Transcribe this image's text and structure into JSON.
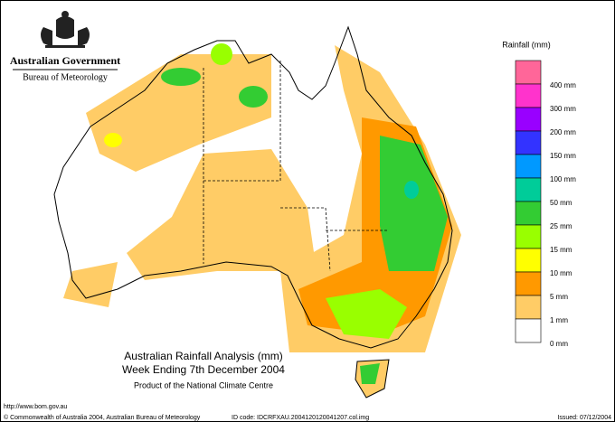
{
  "header": {
    "government": "Australian Government",
    "bureau": "Bureau of Meteorology"
  },
  "legend": {
    "title": "Rainfall (mm)",
    "colors": [
      "#ff6699",
      "#ff33cc",
      "#9900ff",
      "#3333ff",
      "#0099ff",
      "#00cc99",
      "#33cc33",
      "#99ff00",
      "#ffff00",
      "#ff9900",
      "#ffcc66",
      "#ffffff"
    ],
    "labels": [
      "400 mm",
      "300 mm",
      "200 mm",
      "150 mm",
      "100 mm",
      "50 mm",
      "25 mm",
      "15 mm",
      "10 mm",
      "5 mm",
      "1 mm",
      "0 mm"
    ]
  },
  "caption": {
    "title": "Australian Rainfall Analysis (mm)",
    "subtitle": "Week Ending 7th December 2004",
    "product": "Product of the National Climate Centre"
  },
  "footer": {
    "url": "http://www.bom.gov.au",
    "copyright": "© Commonwealth of Australia 2004, Australian Bureau of Meteorology",
    "id_code": "ID code: IDCRFXAU.2004120120041207.col.img",
    "issued": "Issued: 07/12/2004"
  }
}
